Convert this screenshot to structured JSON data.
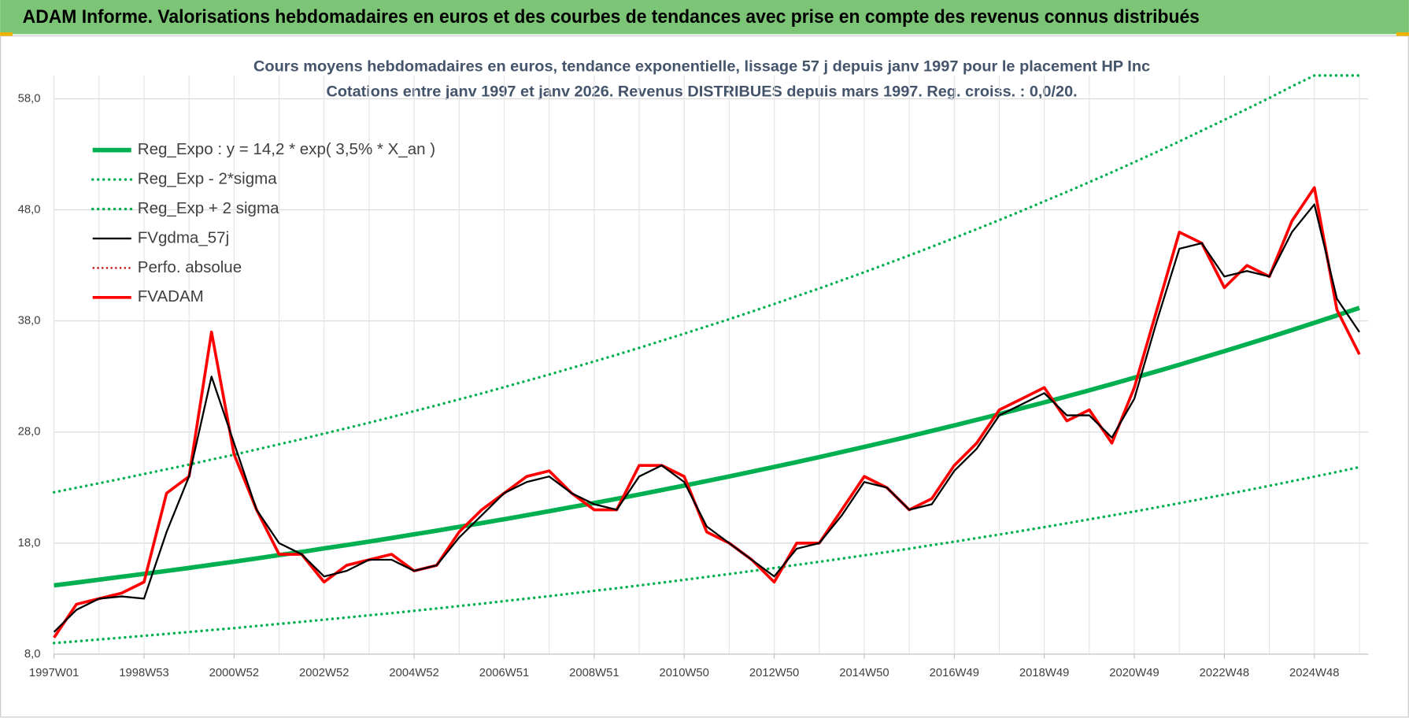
{
  "header": {
    "title": "ADAM Informe. Valorisations hebdomadaires en euros et des courbes de tendances avec prise en compte des revenus connus distribués"
  },
  "chart_data": {
    "type": "line",
    "title": "Cours moyens hebdomadaires en euros, tendance exponentielle, lissage 57 j depuis janv 1997 pour le placement HP Inc",
    "subtitle": "Cotations entre janv 1997 et janv 2026. Revenus DISTRIBUES depuis mars 1997. Reg. croiss. : 0,0/20.",
    "categories": [
      "1997W01",
      null,
      null,
      null,
      "1998W53",
      null,
      null,
      null,
      "2000W52",
      null,
      null,
      null,
      "2002W52",
      null,
      null,
      null,
      "2004W52",
      null,
      null,
      null,
      "2006W51",
      null,
      null,
      null,
      "2008W51",
      null,
      null,
      null,
      "2010W50",
      null,
      null,
      null,
      "2012W50",
      null,
      null,
      null,
      "2014W50",
      null,
      null,
      null,
      "2016W49",
      null,
      null,
      null,
      "2018W49",
      null,
      null,
      null,
      "2020W49",
      null,
      null,
      null,
      "2022W48",
      null,
      null,
      null,
      "2024W48",
      null,
      null
    ],
    "ylim": [
      8,
      60.1
    ],
    "yticks": [
      {
        "value": 8,
        "label": "8,0"
      },
      {
        "value": 18,
        "label": "18,0"
      },
      {
        "value": 28,
        "label": "28,0"
      },
      {
        "value": 38,
        "label": "38,0"
      },
      {
        "value": 48,
        "label": "48,0"
      },
      {
        "value": 58,
        "label": "58,0"
      }
    ],
    "grid": true,
    "legend": "upper left",
    "series": [
      {
        "name": "Reg_Expo : y = 14,2 * exp( 3,5% *  X_an )",
        "color": "#00b050",
        "line_style": "solid-thick",
        "values": [
          14.2,
          14.45,
          14.71,
          14.97,
          15.23,
          15.5,
          15.77,
          16.05,
          16.33,
          16.62,
          16.92,
          17.21,
          17.52,
          17.83,
          18.14,
          18.46,
          18.79,
          19.12,
          19.46,
          19.8,
          20.15,
          20.51,
          20.87,
          21.24,
          21.61,
          21.99,
          22.38,
          22.78,
          23.18,
          23.59,
          24.0,
          24.43,
          24.86,
          25.3,
          25.74,
          26.2,
          26.66,
          27.13,
          27.61,
          28.1,
          28.6,
          29.1,
          29.61,
          30.14,
          30.67,
          31.21,
          31.76,
          32.32,
          32.89,
          33.47,
          34.06,
          34.67,
          35.28,
          35.9,
          36.53,
          37.18,
          37.84,
          38.5,
          39.18
        ]
      },
      {
        "name": "Reg_Exp - 2*sigma",
        "color": "#00b050",
        "line_style": "dotted",
        "values": [
          9.0,
          9.16,
          9.33,
          9.49,
          9.66,
          9.83,
          10.0,
          10.18,
          10.35,
          10.54,
          10.73,
          10.91,
          11.11,
          11.3,
          11.5,
          11.7,
          11.91,
          12.12,
          12.34,
          12.55,
          12.78,
          13.0,
          13.23,
          13.47,
          13.7,
          13.94,
          14.19,
          14.44,
          14.7,
          14.96,
          15.22,
          15.49,
          15.76,
          16.04,
          16.32,
          16.61,
          16.9,
          17.2,
          17.5,
          17.82,
          18.13,
          18.45,
          18.77,
          19.11,
          19.44,
          19.79,
          20.14,
          20.49,
          20.85,
          21.22,
          21.59,
          21.98,
          22.37,
          22.76,
          23.16,
          23.57,
          23.99,
          24.41,
          24.84
        ]
      },
      {
        "name": "Reg_Exp + 2 sigma",
        "color": "#00b050",
        "line_style": "dotted",
        "values": [
          22.58,
          22.98,
          23.39,
          23.8,
          24.22,
          24.65,
          25.07,
          25.52,
          25.96,
          26.43,
          26.9,
          27.36,
          27.86,
          28.35,
          28.84,
          29.35,
          29.88,
          30.4,
          30.94,
          31.48,
          32.04,
          32.61,
          33.18,
          33.77,
          34.36,
          34.96,
          35.58,
          36.22,
          36.86,
          37.51,
          38.16,
          38.84,
          39.53,
          40.23,
          40.93,
          41.66,
          42.39,
          43.14,
          43.9,
          44.68,
          45.47,
          46.27,
          47.08,
          47.92,
          48.77,
          49.62,
          50.5,
          51.39,
          52.3,
          53.22,
          54.16,
          55.13,
          56.1,
          57.08,
          58.08,
          59.12,
          60.1,
          60.1,
          60.1
        ]
      },
      {
        "name": "FVgdma_57j",
        "color": "#000000",
        "line_style": "solid",
        "values": [
          10,
          12,
          13,
          13.2,
          13,
          19,
          24,
          33,
          27,
          21,
          18,
          17,
          15,
          15.5,
          16.5,
          16.5,
          15.5,
          16,
          18.5,
          20.5,
          22.5,
          23.5,
          24,
          22.5,
          21.5,
          21,
          24,
          25,
          23.5,
          19.5,
          18,
          16.5,
          15,
          17.5,
          18,
          20.5,
          23.5,
          23,
          21,
          21.5,
          24.5,
          26.5,
          29.5,
          30.5,
          31.5,
          29.5,
          29.5,
          27.5,
          31,
          38,
          44.5,
          45,
          42,
          42.5,
          42,
          46,
          48.5,
          40,
          37
        ]
      },
      {
        "name": "Perfo. absolue",
        "color": "#c00000",
        "line_style": "dotted-thin",
        "values": [
          9.5,
          12.5,
          13,
          13.5,
          14.5,
          22.5,
          24,
          37,
          26,
          21,
          17,
          17,
          14.5,
          16,
          16.5,
          17,
          15.5,
          16,
          19,
          21,
          22.5,
          24,
          24.5,
          22.5,
          21,
          21,
          25,
          25,
          24,
          19,
          18,
          16.5,
          14.5,
          18,
          18,
          21,
          24,
          23,
          21,
          22,
          25,
          27,
          30,
          31,
          32,
          29,
          30,
          27,
          32,
          39,
          46,
          45,
          41,
          43,
          42,
          47,
          50,
          39,
          35
        ]
      },
      {
        "name": "FVADAM",
        "color": "#ff0000",
        "line_style": "solid-medium",
        "values": [
          9.5,
          12.5,
          13,
          13.5,
          14.5,
          22.5,
          24,
          37,
          26,
          21,
          17,
          17,
          14.5,
          16,
          16.5,
          17,
          15.5,
          16,
          19,
          21,
          22.5,
          24,
          24.5,
          22.5,
          21,
          21,
          25,
          25,
          24,
          19,
          18,
          16.5,
          14.5,
          18,
          18,
          21,
          24,
          23,
          21,
          22,
          25,
          27,
          30,
          31,
          32,
          29,
          30,
          27,
          32,
          39,
          46,
          45,
          41,
          43,
          42,
          47,
          50,
          39,
          35
        ]
      }
    ]
  }
}
